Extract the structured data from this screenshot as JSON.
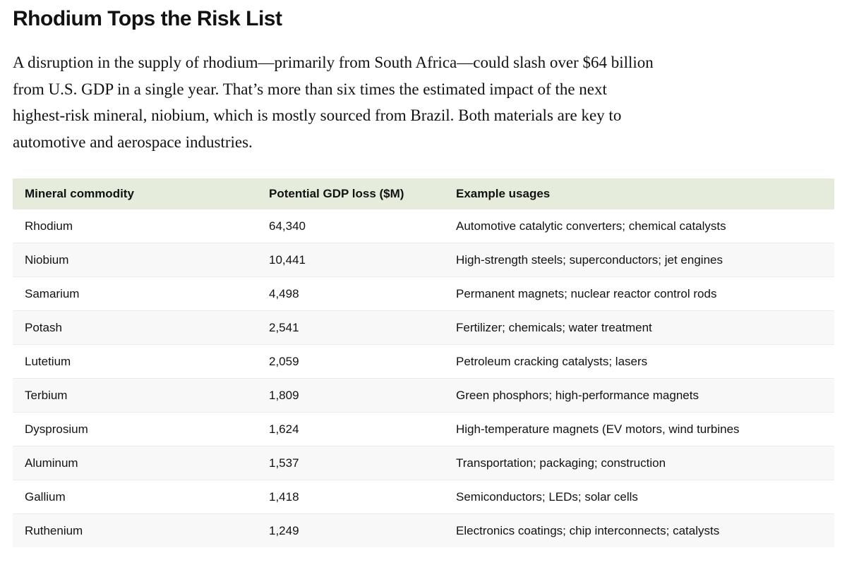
{
  "colors": {
    "background": "#ffffff",
    "text": "#121212",
    "table_header_bg": "#e5ecdb",
    "alt_row_bg": "#f8f8f8",
    "row_divider": "#ebebeb"
  },
  "chart_data": {
    "type": "table",
    "title": "Rhodium Tops the Risk List",
    "subtitle": "A disruption in the supply of rhodium—primarily from South Africa—could slash over $64 billion from U.S. GDP in a single year. That’s more than six times the estimated impact of the next highest-risk mineral, niobium, which is mostly sourced from Brazil. Both materials are key to automotive and aerospace industries.",
    "subtitle_lines": [
      "A disruption in the supply of rhodium—primarily from South Africa—could slash over $64 billion",
      "from U.S. GDP in a single year. That’s more than six times the estimated impact of the next",
      "highest-risk mineral, niobium, which is mostly sourced from Brazil. Both materials are key to",
      "automotive and aerospace industries."
    ],
    "columns": [
      "Mineral commodity",
      "Potential GDP loss ($M)",
      "Example usages"
    ],
    "rows": [
      {
        "mineral": "Rhodium",
        "gdp_loss": "64,340",
        "gdp_loss_value": 64340,
        "usages": "Automotive catalytic converters; chemical catalysts"
      },
      {
        "mineral": "Niobium",
        "gdp_loss": "10,441",
        "gdp_loss_value": 10441,
        "usages": "High-strength steels; superconductors; jet engines"
      },
      {
        "mineral": "Samarium",
        "gdp_loss": "4,498",
        "gdp_loss_value": 4498,
        "usages": "Permanent magnets; nuclear reactor control rods"
      },
      {
        "mineral": "Potash",
        "gdp_loss": "2,541",
        "gdp_loss_value": 2541,
        "usages": "Fertilizer; chemicals; water treatment"
      },
      {
        "mineral": "Lutetium",
        "gdp_loss": "2,059",
        "gdp_loss_value": 2059,
        "usages": "Petroleum cracking catalysts; lasers"
      },
      {
        "mineral": "Terbium",
        "gdp_loss": "1,809",
        "gdp_loss_value": 1809,
        "usages": "Green phosphors; high-performance magnets"
      },
      {
        "mineral": "Dysprosium",
        "gdp_loss": "1,624",
        "gdp_loss_value": 1624,
        "usages": "High-temperature magnets (EV motors, wind turbines"
      },
      {
        "mineral": "Aluminum",
        "gdp_loss": "1,537",
        "gdp_loss_value": 1537,
        "usages": "Transportation; packaging; construction"
      },
      {
        "mineral": "Gallium",
        "gdp_loss": "1,418",
        "gdp_loss_value": 1418,
        "usages": "Semiconductors; LEDs; solar cells"
      },
      {
        "mineral": "Ruthenium",
        "gdp_loss": "1,249",
        "gdp_loss_value": 1249,
        "usages": "Electronics coatings; chip interconnects; catalysts"
      }
    ]
  }
}
